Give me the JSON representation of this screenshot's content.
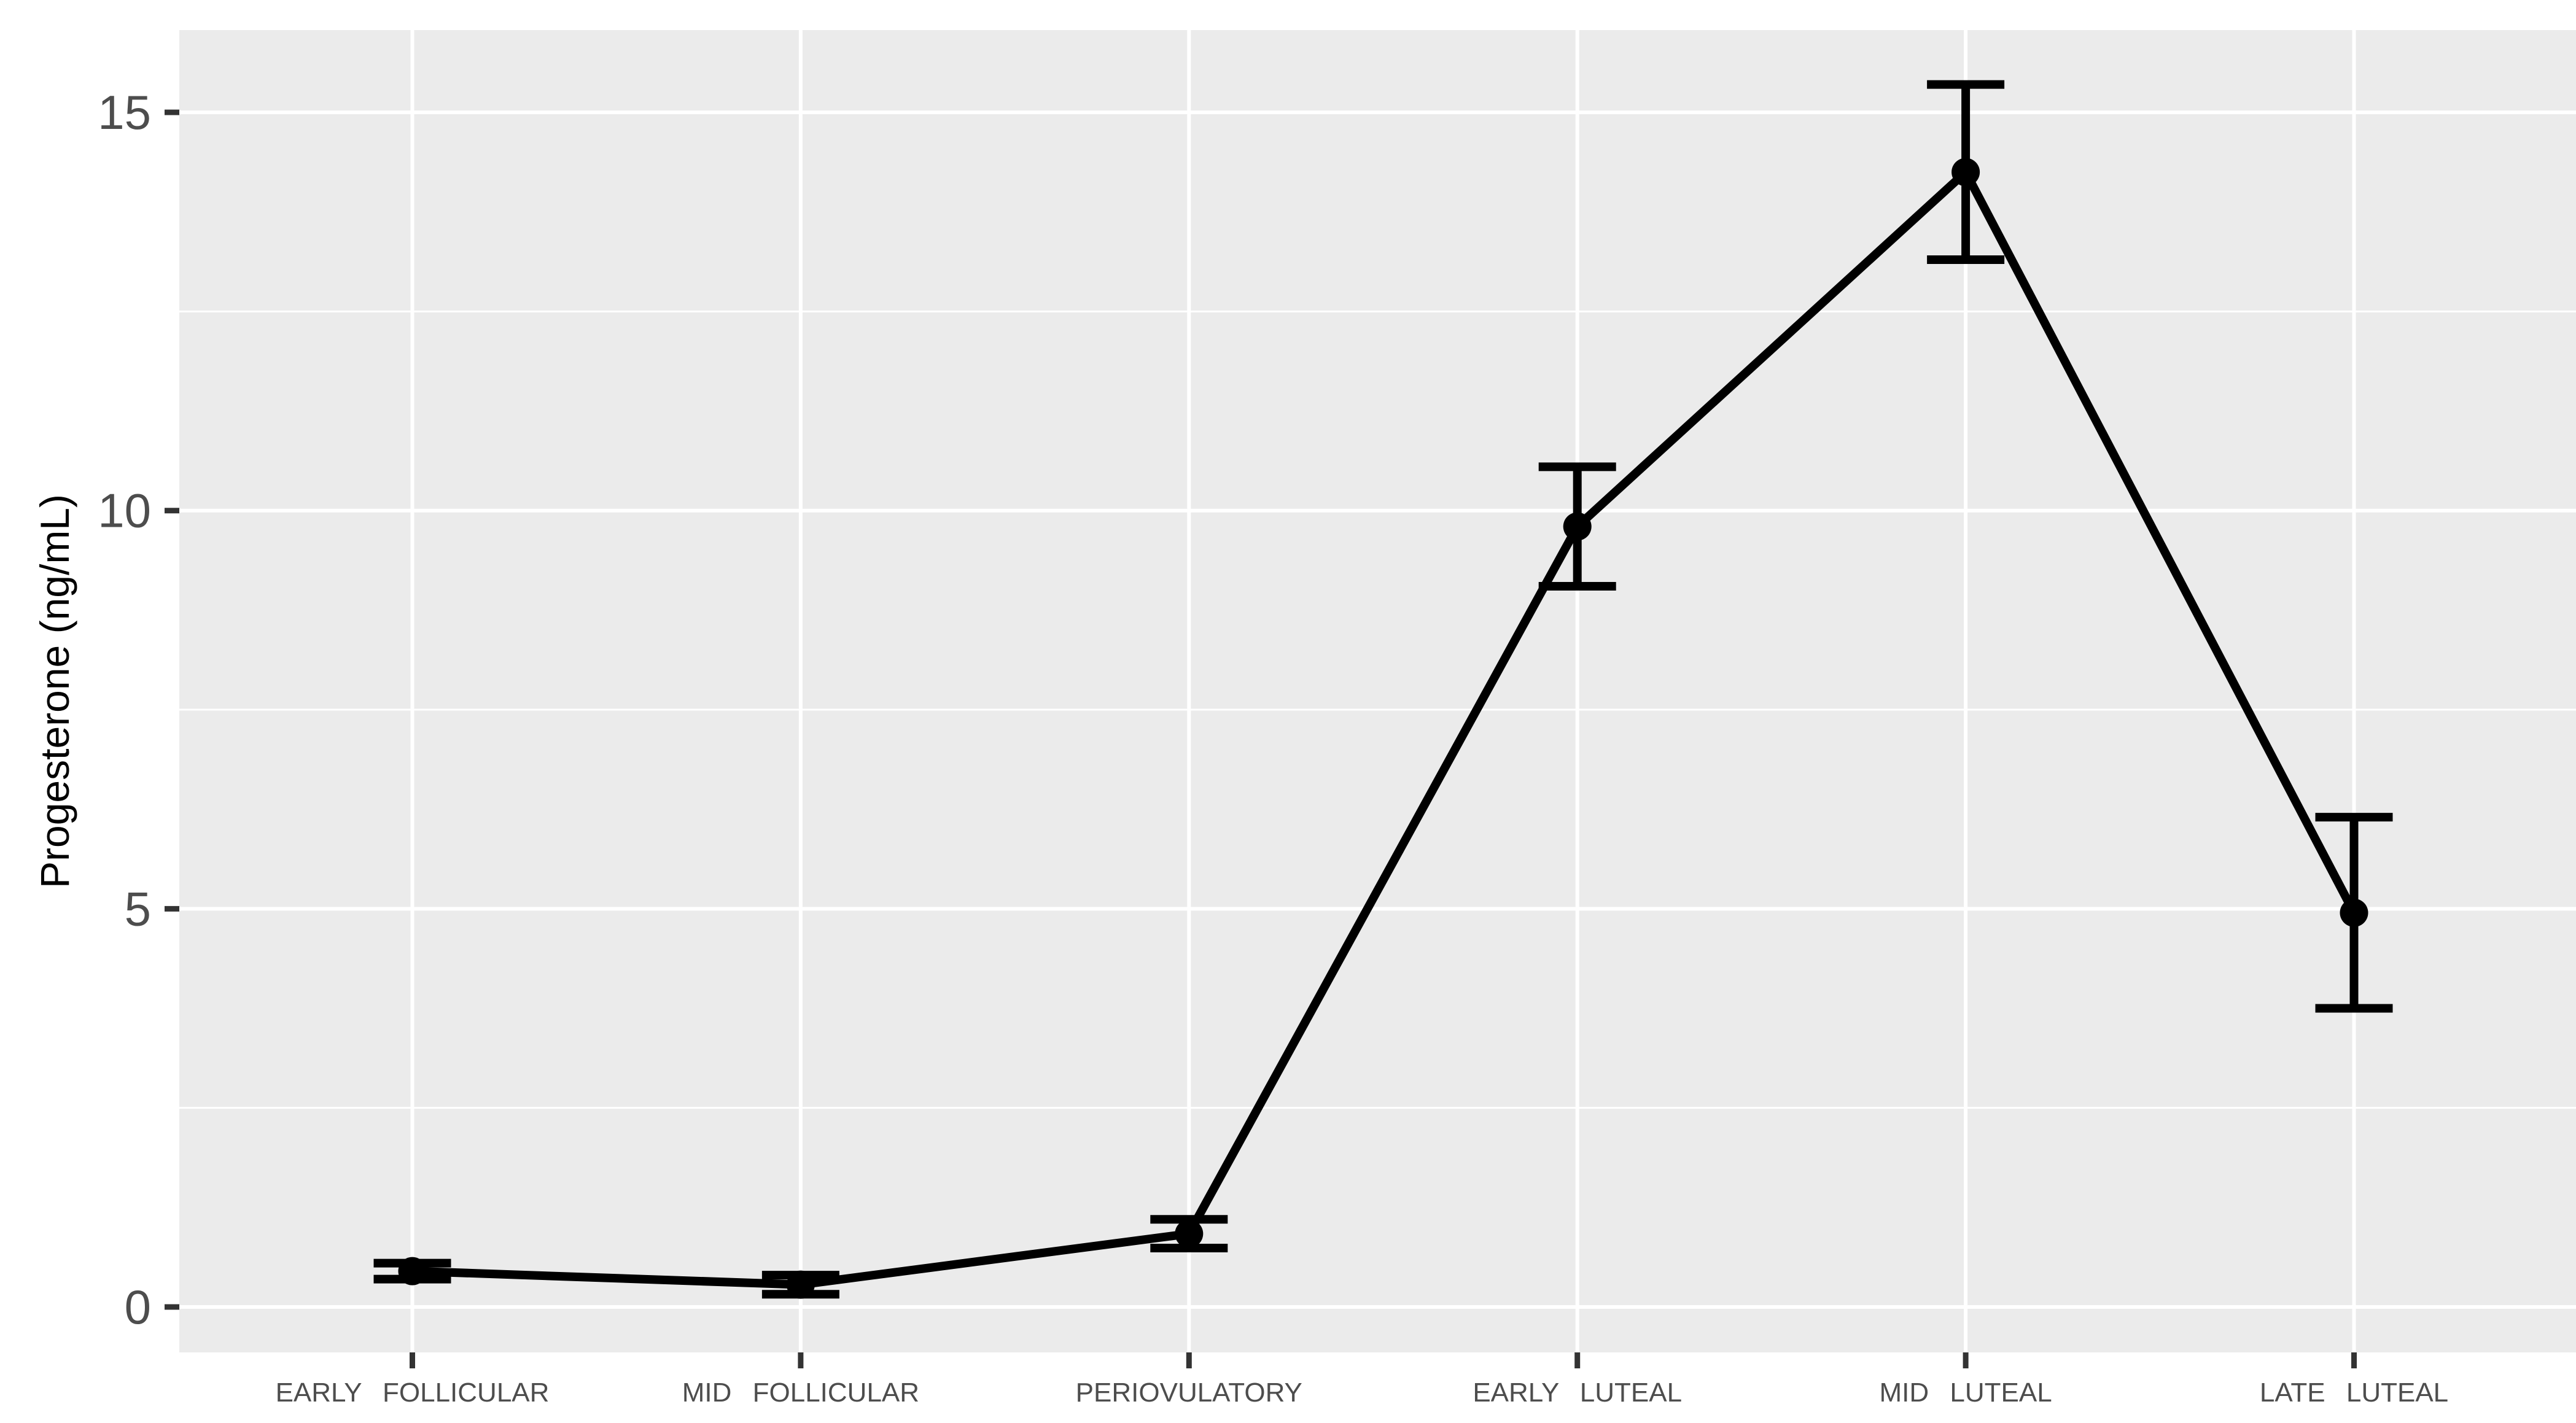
{
  "chart_data": {
    "type": "line",
    "title": "",
    "xlabel": "",
    "ylabel": "Progesterone (ng/mL)",
    "categories": [
      "EARLY FOLLICULAR",
      "MID FOLLICULAR",
      "PERIOVULATORY",
      "EARLY LUTEAL",
      "MID LUTEAL",
      "LATE LUTEAL"
    ],
    "series": [
      {
        "name": "Progesterone (ng/mL)",
        "values": [
          0.45,
          0.28,
          0.92,
          9.8,
          14.25,
          4.95
        ],
        "error_low": [
          0.35,
          0.16,
          0.74,
          9.05,
          13.15,
          3.75
        ],
        "error_high": [
          0.55,
          0.4,
          1.1,
          10.55,
          15.35,
          6.15
        ]
      }
    ],
    "y_axis": {
      "ticks": [
        0,
        5,
        10,
        15
      ],
      "tick_labels": [
        "0",
        "5",
        "10",
        "15"
      ],
      "minor_ticks": [
        2.5,
        7.5,
        12.5
      ],
      "ylim": [
        0,
        15
      ]
    },
    "legend": "none",
    "grid": "major-y, minor-y, major-x",
    "marker": "filled-circle",
    "error_bars": "vertical-with-caps",
    "colors": {
      "series": "#000000",
      "panel_background": "#EBEBEB",
      "gridline": "#FFFFFF",
      "tick_mark": "#333333",
      "tick_label": "#4D4D4D",
      "axis_title": "#000000",
      "page_background": "#FFFFFF"
    }
  }
}
